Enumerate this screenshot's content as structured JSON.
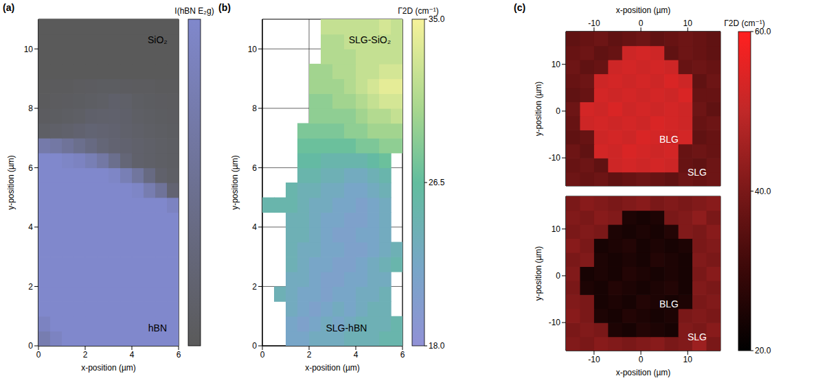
{
  "chart_data": [
    {
      "type": "heatmap",
      "panel": "(a)",
      "xlabel": "x-position (µm)",
      "ylabel": "y-position (µm)",
      "xlim": [
        0,
        6
      ],
      "ylim": [
        0,
        11
      ],
      "xticks": [
        0,
        2,
        4,
        6
      ],
      "yticks": [
        0,
        2,
        4,
        6,
        8,
        10
      ],
      "grid": true,
      "x": [
        0.25,
        0.75,
        1.25,
        1.75,
        2.25,
        2.75,
        3.25,
        3.75,
        4.25,
        4.75,
        5.25,
        5.75
      ],
      "y": [
        0.25,
        0.75,
        1.25,
        1.75,
        2.25,
        2.75,
        3.25,
        3.75,
        4.25,
        4.75,
        5.25,
        5.75,
        6.25,
        6.75,
        7.25,
        7.75,
        8.25,
        8.75,
        9.25,
        9.75,
        10.25,
        10.75
      ],
      "z": [
        [
          75,
          90,
          100,
          100,
          100,
          100,
          100,
          100,
          100,
          100,
          100,
          100
        ],
        [
          90,
          100,
          100,
          100,
          100,
          100,
          100,
          100,
          100,
          100,
          100,
          100
        ],
        [
          100,
          100,
          100,
          100,
          100,
          100,
          100,
          100,
          100,
          100,
          100,
          100
        ],
        [
          100,
          100,
          100,
          100,
          100,
          100,
          100,
          100,
          100,
          100,
          100,
          100
        ],
        [
          100,
          100,
          100,
          100,
          100,
          100,
          100,
          100,
          100,
          100,
          100,
          100
        ],
        [
          100,
          100,
          100,
          100,
          100,
          100,
          100,
          100,
          100,
          100,
          100,
          100
        ],
        [
          100,
          100,
          100,
          100,
          100,
          100,
          100,
          100,
          100,
          100,
          100,
          100
        ],
        [
          100,
          100,
          100,
          100,
          100,
          100,
          100,
          100,
          100,
          100,
          100,
          100
        ],
        [
          100,
          100,
          100,
          100,
          100,
          100,
          100,
          100,
          100,
          100,
          100,
          100
        ],
        [
          100,
          100,
          100,
          100,
          100,
          100,
          100,
          100,
          100,
          100,
          100,
          90
        ],
        [
          100,
          100,
          100,
          100,
          100,
          100,
          100,
          100,
          95,
          75,
          55,
          20
        ],
        [
          100,
          100,
          100,
          100,
          100,
          100,
          95,
          80,
          60,
          35,
          15,
          10
        ],
        [
          100,
          100,
          95,
          90,
          80,
          65,
          45,
          25,
          15,
          12,
          10,
          8
        ],
        [
          70,
          65,
          55,
          45,
          35,
          25,
          20,
          18,
          15,
          12,
          10,
          8
        ],
        [
          10,
          12,
          15,
          18,
          22,
          20,
          18,
          15,
          12,
          10,
          8,
          6
        ],
        [
          5,
          6,
          8,
          10,
          14,
          15,
          16,
          14,
          10,
          8,
          6,
          5
        ],
        [
          3,
          4,
          5,
          6,
          8,
          10,
          14,
          12,
          8,
          6,
          5,
          4
        ],
        [
          2,
          3,
          3,
          4,
          5,
          6,
          6,
          5,
          4,
          4,
          3,
          3
        ],
        [
          0,
          0,
          0,
          0,
          0,
          0,
          0,
          0,
          0,
          0,
          0,
          0
        ],
        [
          0,
          0,
          0,
          0,
          0,
          0,
          0,
          0,
          0,
          0,
          0,
          0
        ],
        [
          0,
          0,
          0,
          0,
          0,
          0,
          0,
          0,
          0,
          0,
          0,
          0
        ],
        [
          0,
          0,
          0,
          0,
          0,
          0,
          0,
          0,
          0,
          0,
          0,
          0
        ]
      ],
      "colorbar": {
        "label": "I(hBN E₂g)",
        "range": [
          0,
          100
        ]
      },
      "annotations": [
        {
          "text": "SiO₂",
          "x": 5.1,
          "y": 10.3
        },
        {
          "text": "hBN",
          "x": 5.1,
          "y": 0.6
        }
      ]
    },
    {
      "type": "heatmap",
      "panel": "(b)",
      "xlabel": "x-position (µm)",
      "ylabel": "y-position (µm)",
      "xlim": [
        0,
        6
      ],
      "ylim": [
        0,
        11
      ],
      "xticks": [
        0,
        2,
        4,
        6
      ],
      "yticks": [
        0,
        2,
        4,
        6,
        8,
        10
      ],
      "grid": true,
      "x": [
        0.25,
        0.75,
        1.25,
        1.75,
        2.25,
        2.75,
        3.25,
        3.75,
        4.25,
        4.75,
        5.25,
        5.75
      ],
      "y": [
        0.25,
        0.75,
        1.25,
        1.75,
        2.25,
        2.75,
        3.25,
        3.75,
        4.25,
        4.75,
        5.25,
        5.75,
        6.25,
        6.75,
        7.25,
        7.75,
        8.25,
        8.75,
        9.25,
        9.75,
        10.25,
        10.75
      ],
      "z": [
        [
          null,
          null,
          22,
          22,
          23,
          23,
          23,
          24,
          24,
          24,
          25,
          25
        ],
        [
          null,
          null,
          22,
          21,
          22,
          23,
          22,
          23,
          24,
          24,
          24,
          25
        ],
        [
          null,
          null,
          23,
          22,
          21,
          22,
          23,
          22,
          23,
          24,
          24,
          null
        ],
        [
          null,
          24,
          23,
          22,
          22,
          21,
          22,
          22,
          23,
          23,
          24,
          null
        ],
        [
          null,
          null,
          23,
          23,
          22,
          21,
          21,
          22,
          22,
          23,
          23,
          null
        ],
        [
          null,
          null,
          24,
          23,
          22,
          22,
          21,
          21,
          22,
          23,
          24,
          25
        ],
        [
          null,
          null,
          24,
          23,
          23,
          22,
          22,
          21,
          21,
          22,
          23,
          24
        ],
        [
          null,
          null,
          24,
          24,
          23,
          22,
          21,
          21,
          22,
          22,
          23,
          null
        ],
        [
          null,
          null,
          24,
          24,
          23,
          22,
          22,
          21,
          21,
          22,
          23,
          null
        ],
        [
          25,
          25,
          25,
          24,
          23,
          23,
          22,
          22,
          21,
          22,
          23,
          null
        ],
        [
          null,
          null,
          25,
          24,
          24,
          23,
          23,
          22,
          22,
          23,
          24,
          null
        ],
        [
          null,
          null,
          null,
          25,
          25,
          24,
          24,
          23,
          23,
          24,
          25,
          null
        ],
        [
          null,
          null,
          null,
          26,
          26,
          25,
          25,
          25,
          25,
          26,
          27,
          null
        ],
        [
          null,
          null,
          null,
          27,
          27,
          27,
          27,
          27,
          28,
          28,
          29,
          29
        ],
        [
          null,
          null,
          null,
          28,
          28,
          28,
          28,
          29,
          29,
          30,
          30,
          30
        ],
        [
          null,
          null,
          null,
          null,
          29,
          29,
          29,
          29,
          30,
          31,
          31,
          32
        ],
        [
          null,
          null,
          null,
          null,
          29,
          29,
          30,
          30,
          31,
          32,
          33,
          33
        ],
        [
          null,
          null,
          null,
          null,
          30,
          30,
          30,
          31,
          32,
          33,
          34,
          34
        ],
        [
          null,
          null,
          null,
          null,
          30,
          30,
          31,
          31,
          32,
          32,
          33,
          33
        ],
        [
          null,
          null,
          null,
          null,
          null,
          31,
          31,
          31,
          32,
          32,
          32,
          32
        ],
        [
          null,
          null,
          null,
          null,
          null,
          31,
          31,
          32,
          32,
          32,
          32,
          32
        ],
        [
          null,
          null,
          null,
          null,
          null,
          32,
          32,
          32,
          32,
          32,
          33,
          32
        ]
      ],
      "colorbar": {
        "label": "Γ2D (cm⁻¹)",
        "range": [
          18,
          35
        ],
        "ticks": [
          {
            "value": 18,
            "label": "18.0"
          },
          26.5,
          {
            "value": 35,
            "label": "35.0"
          }
        ]
      },
      "annotations": [
        {
          "text": "SLG-SiO₂",
          "x": 4.6,
          "y": 10.3
        },
        {
          "text": "SLG-hBN",
          "x": 3.6,
          "y": 0.6
        }
      ]
    },
    {
      "type": "heatmap",
      "panel": "(c)",
      "xlabel": "x-position (µm)",
      "ylabel": "y-position (µm)",
      "xlim": [
        -16,
        17
      ],
      "ylim": [
        -16,
        17
      ],
      "xticks": [
        -10,
        0,
        10
      ],
      "yticks": [
        -10,
        0,
        10
      ],
      "grid": false,
      "x": [
        -14.5,
        -11.5,
        -8.5,
        -5.5,
        -2.5,
        0.5,
        3.5,
        6.5,
        9.5,
        12.5,
        15.5
      ],
      "y": [
        -14.5,
        -11.5,
        -8.5,
        -5.5,
        -2.5,
        0.5,
        3.5,
        6.5,
        9.5,
        12.5,
        15.5
      ],
      "maps": [
        {
          "z": [
            [
              38,
              37,
              38,
              36,
              37,
              38,
              37,
              36,
              38,
              37,
              38
            ],
            [
              37,
              38,
              36,
              52,
              53,
              52,
              53,
              52,
              37,
              36,
              38
            ],
            [
              38,
              36,
              53,
              52,
              54,
              53,
              52,
              53,
              37,
              38,
              37
            ],
            [
              36,
              37,
              52,
              53,
              52,
              54,
              53,
              52,
              53,
              36,
              37
            ],
            [
              37,
              52,
              53,
              52,
              53,
              52,
              54,
              53,
              52,
              37,
              38
            ],
            [
              38,
              53,
              52,
              54,
              52,
              53,
              52,
              53,
              52,
              38,
              36
            ],
            [
              36,
              37,
              53,
              52,
              53,
              52,
              53,
              52,
              54,
              37,
              37
            ],
            [
              37,
              38,
              52,
              53,
              52,
              53,
              52,
              54,
              52,
              36,
              38
            ],
            [
              38,
              36,
              37,
              52,
              53,
              52,
              53,
              52,
              37,
              38,
              37
            ],
            [
              37,
              38,
              36,
              37,
              52,
              53,
              52,
              36,
              38,
              37,
              36
            ],
            [
              36,
              37,
              38,
              36,
              37,
              38,
              36,
              37,
              38,
              37,
              36
            ]
          ],
          "annotations": [
            {
              "text": "BLG",
              "x": 6,
              "y": -6
            },
            {
              "text": "SLG",
              "x": 12,
              "y": -13
            }
          ]
        },
        {
          "z": [
            [
              41,
              40,
              42,
              41,
              40,
              41,
              42,
              40,
              41,
              45,
              40
            ],
            [
              40,
              41,
              40,
              25,
              24,
              26,
              25,
              24,
              41,
              40,
              42
            ],
            [
              42,
              40,
              25,
              24,
              26,
              25,
              24,
              25,
              40,
              41,
              40
            ],
            [
              41,
              40,
              24,
              25,
              24,
              26,
              25,
              24,
              25,
              40,
              41
            ],
            [
              40,
              25,
              24,
              26,
              25,
              24,
              25,
              26,
              24,
              41,
              40
            ],
            [
              41,
              24,
              25,
              24,
              26,
              25,
              24,
              25,
              24,
              40,
              42
            ],
            [
              40,
              41,
              25,
              24,
              25,
              24,
              26,
              25,
              24,
              41,
              40
            ],
            [
              42,
              40,
              24,
              25,
              26,
              24,
              25,
              24,
              25,
              40,
              41
            ],
            [
              40,
              41,
              40,
              25,
              24,
              25,
              24,
              26,
              41,
              40,
              42
            ],
            [
              41,
              40,
              42,
              41,
              25,
              24,
              25,
              40,
              41,
              43,
              40
            ],
            [
              40,
              42,
              41,
              40,
              41,
              42,
              40,
              41,
              40,
              41,
              42
            ]
          ],
          "annotations": [
            {
              "text": "BLG",
              "x": 6,
              "y": -6
            },
            {
              "text": "SLG",
              "x": 12,
              "y": -13
            }
          ]
        }
      ],
      "colorbar": {
        "label": "Γ2D (cm⁻¹)",
        "range": [
          20,
          60
        ],
        "ticks": [
          {
            "value": 20,
            "label": "20.0"
          },
          {
            "value": 40,
            "label": "40.0"
          },
          {
            "value": 60,
            "label": "60.0"
          }
        ]
      }
    }
  ]
}
